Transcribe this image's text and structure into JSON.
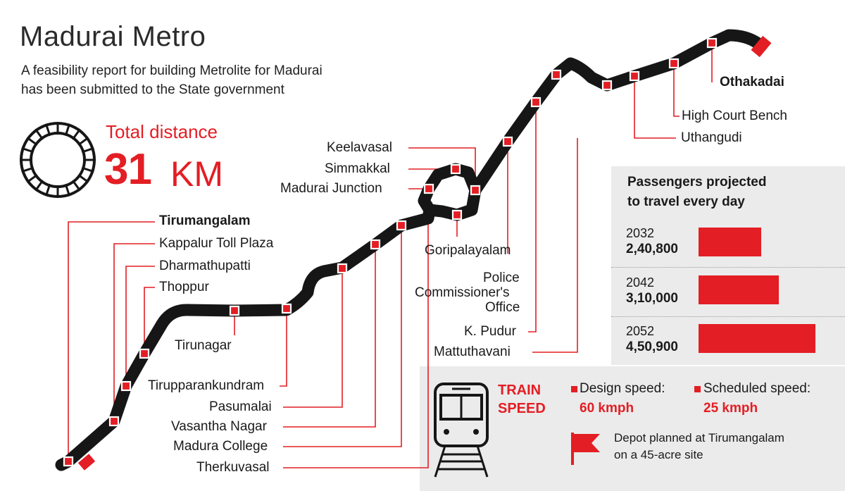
{
  "title": "Madurai Metro",
  "subtitle_line1": "A feasibility report for building Metrolite for Madurai",
  "subtitle_line2": "has been submitted to the State government",
  "distance": {
    "label": "Total distance",
    "value": "31",
    "unit": "KM"
  },
  "stations": [
    {
      "id": "thirumangalam",
      "label": "Tirumangalam"
    },
    {
      "id": "kappalur",
      "label": "Kappalur Toll Plaza"
    },
    {
      "id": "dharmathupatti",
      "label": "Dharmathupatti"
    },
    {
      "id": "thoppur",
      "label": "Thoppur"
    },
    {
      "id": "tirunagar",
      "label": "Tirunagar"
    },
    {
      "id": "tirupparankundram",
      "label": "Tirupparankundram"
    },
    {
      "id": "pasumalai",
      "label": "Pasumalai"
    },
    {
      "id": "vasantha",
      "label": "Vasantha Nagar"
    },
    {
      "id": "madura",
      "label": "Madura College"
    },
    {
      "id": "therkuvasal",
      "label": "Therkuvasal"
    },
    {
      "id": "junction",
      "label": "Madurai Junction"
    },
    {
      "id": "simmakkal",
      "label": "Simmakkal"
    },
    {
      "id": "keelavasal",
      "label": "Keelavasal"
    },
    {
      "id": "goripalayam",
      "label": "Goripalayalam"
    },
    {
      "id": "police1",
      "label": "Police"
    },
    {
      "id": "police2",
      "label": "Commissioner's"
    },
    {
      "id": "police3",
      "label": "Office"
    },
    {
      "id": "kpudur",
      "label": "K. Pudur"
    },
    {
      "id": "mattuthavani",
      "label": "Mattuthavani"
    },
    {
      "id": "uthangudi",
      "label": "Uthangudi"
    },
    {
      "id": "highcourt",
      "label": "High Court Bench"
    },
    {
      "id": "othakadai",
      "label": "Othakadai"
    }
  ],
  "passengers": {
    "title_line1": "Passengers projected",
    "title_line2": "to travel every day",
    "rows": [
      {
        "year": "2032",
        "value": "2,40,800",
        "amount": 240800
      },
      {
        "year": "2042",
        "value": "3,10,000",
        "amount": 310000
      },
      {
        "year": "2052",
        "value": "4,50,900",
        "amount": 450900
      }
    ]
  },
  "speed": {
    "label_line1": "TRAIN",
    "label_line2": "SPEED",
    "design_label": "Design speed:",
    "design_value": "60 kmph",
    "scheduled_label": "Scheduled speed:",
    "scheduled_value": "25 kmph"
  },
  "depot": {
    "line1": "Depot planned at Tirumangalam",
    "line2": "on a 45-acre site"
  },
  "colors": {
    "accent": "#e31e24",
    "track": "#161616",
    "panel": "#ebebeb"
  }
}
